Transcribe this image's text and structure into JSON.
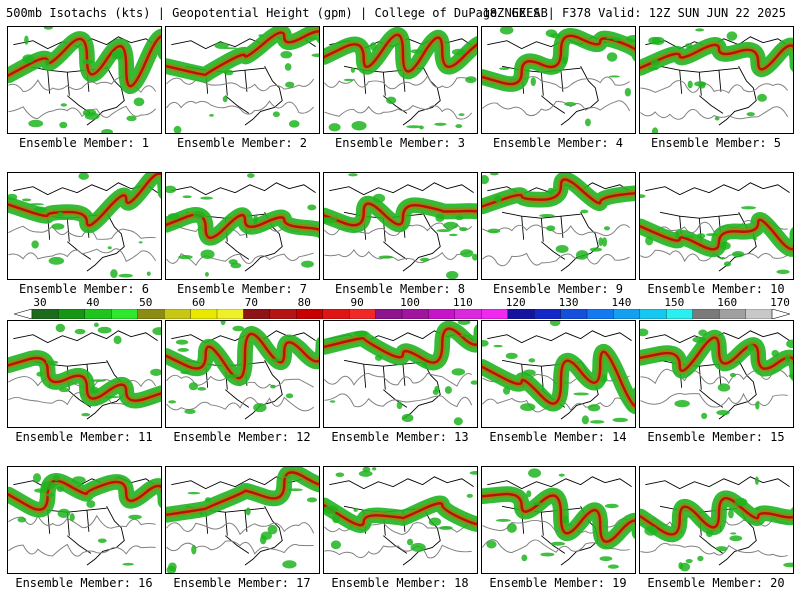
{
  "header": {
    "left": "500mb Isotachs (kts) | Geopotential Height (gpm) | College of DuPage NEXLAB",
    "right": "18Z GEFS | F378 Valid: 12Z SUN JUN 22 2025"
  },
  "panels": [
    {
      "label": "Ensemble Member: 1"
    },
    {
      "label": "Ensemble Member: 2"
    },
    {
      "label": "Ensemble Member: 3"
    },
    {
      "label": "Ensemble Member: 4"
    },
    {
      "label": "Ensemble Member: 5"
    },
    {
      "label": "Ensemble Member: 6"
    },
    {
      "label": "Ensemble Member: 7"
    },
    {
      "label": "Ensemble Member: 8"
    },
    {
      "label": "Ensemble Member: 9"
    },
    {
      "label": "Ensemble Member: 10"
    },
    {
      "label": "Ensemble Member: 11"
    },
    {
      "label": "Ensemble Member: 12"
    },
    {
      "label": "Ensemble Member: 13"
    },
    {
      "label": "Ensemble Member: 14"
    },
    {
      "label": "Ensemble Member: 15"
    },
    {
      "label": "Ensemble Member: 16"
    },
    {
      "label": "Ensemble Member: 17"
    },
    {
      "label": "Ensemble Member: 18"
    },
    {
      "label": "Ensemble Member: 19"
    },
    {
      "label": "Ensemble Member: 20"
    }
  ],
  "colorbar": {
    "tick_labels": [
      "30",
      "40",
      "50",
      "60",
      "70",
      "80",
      "90",
      "100",
      "110",
      "120",
      "130",
      "140",
      "150",
      "160",
      "170"
    ],
    "colors": [
      "#1c6b1c",
      "#159615",
      "#1fc41f",
      "#2ee82e",
      "#8c8c14",
      "#c8c814",
      "#e8e800",
      "#f0f028",
      "#8c1414",
      "#b41414",
      "#c80000",
      "#e01414",
      "#f02828",
      "#8c148c",
      "#a014a0",
      "#c814c8",
      "#dc28dc",
      "#f028f0",
      "#1414a0",
      "#1428c8",
      "#1450dc",
      "#1478f0",
      "#14a0f0",
      "#14c8f0",
      "#28f0f0",
      "#7a7a7a",
      "#a0a0a0",
      "#c8c8c8"
    ]
  },
  "map_colors": {
    "land_outline": "#000000",
    "height_contour": "#808080",
    "jet_low": "#1fb41f",
    "jet_mid": "#8c8c14",
    "jet_high": "#c80000"
  }
}
